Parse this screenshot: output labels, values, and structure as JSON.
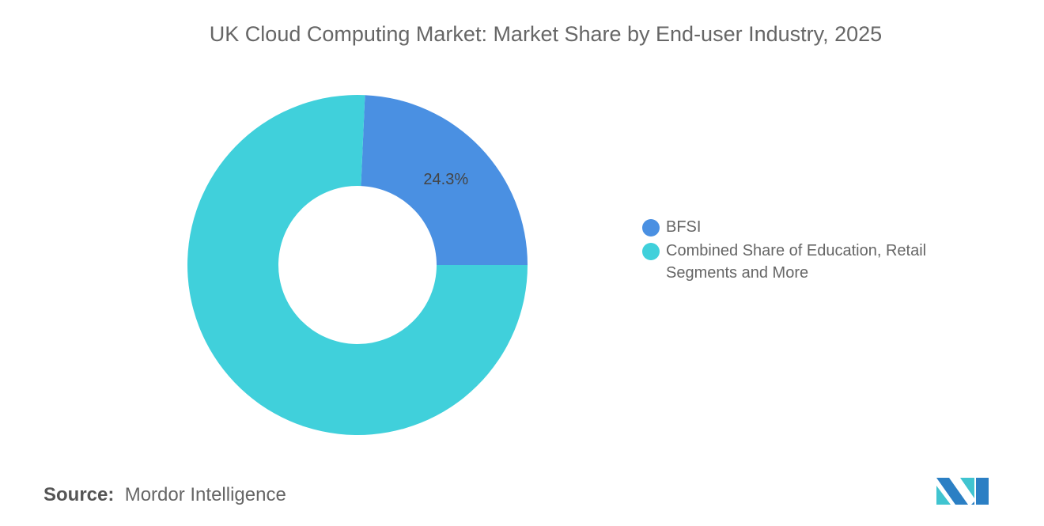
{
  "chart_data": {
    "type": "pie",
    "donut": true,
    "title": "UK Cloud Computing Market: Market Share by End-user Industry, 2025",
    "slices": [
      {
        "label": "BFSI",
        "value": 24.3,
        "color": "#4a90e2",
        "data_label": "24.3%"
      },
      {
        "label": "Combined Share of Education, Retail Segments and More",
        "value": 75.7,
        "color": "#40d0db",
        "data_label": ""
      }
    ],
    "legend_placement": "right"
  },
  "source": {
    "label": "Source:",
    "value": "Mordor Intelligence"
  },
  "logo": {
    "text": "Mordor Intelligence logo",
    "colors": [
      "#2b7fc4",
      "#40c4d0"
    ]
  }
}
